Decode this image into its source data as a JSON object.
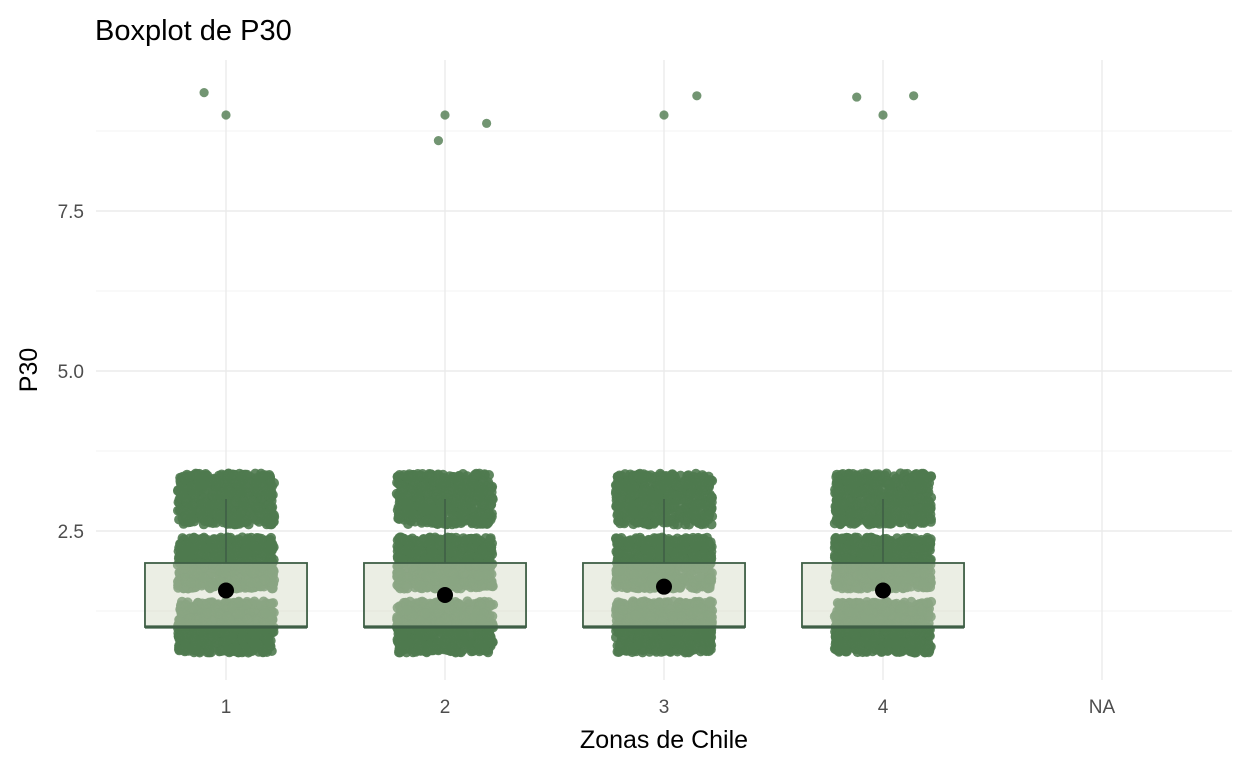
{
  "chart_data": {
    "type": "boxplot",
    "title": "Boxplot de P30",
    "xlabel": "Zonas de Chile",
    "ylabel": "P30",
    "categories": [
      "1",
      "2",
      "3",
      "4",
      "NA"
    ],
    "y_ticks": [
      2.5,
      5.0,
      7.5
    ],
    "y_tick_labels": [
      "2.5",
      "5.0",
      "7.5"
    ],
    "ylim": [
      0.48,
      9.6
    ],
    "grid": true,
    "legend": "none",
    "colors": {
      "points": "#4f7a4f",
      "box_fill": "#d2dac4",
      "box_stroke": "#3f5f46",
      "mean_marker": "#000000",
      "grid": "#ebebeb"
    },
    "boxes": [
      {
        "category": "1",
        "q1": 1.0,
        "median": 1.0,
        "q3": 2.0,
        "whisker_low": 1.0,
        "whisker_high": 3.0,
        "mean": 1.57
      },
      {
        "category": "2",
        "q1": 1.0,
        "median": 1.0,
        "q3": 2.0,
        "whisker_low": 1.0,
        "whisker_high": 3.0,
        "mean": 1.5
      },
      {
        "category": "3",
        "q1": 1.0,
        "median": 1.0,
        "q3": 2.0,
        "whisker_low": 1.0,
        "whisker_high": 3.0,
        "mean": 1.63
      },
      {
        "category": "4",
        "q1": 1.0,
        "median": 1.0,
        "q3": 2.0,
        "whisker_low": 1.0,
        "whisker_high": 3.0,
        "mean": 1.57
      }
    ],
    "outliers": [
      {
        "category": "1",
        "x": 0.9,
        "y": 9.35
      },
      {
        "category": "1",
        "x": 1.0,
        "y": 9.0
      },
      {
        "category": "2",
        "x": 1.97,
        "y": 8.6
      },
      {
        "category": "2",
        "x": 2.0,
        "y": 9.0
      },
      {
        "category": "2",
        "x": 2.19,
        "y": 8.87
      },
      {
        "category": "3",
        "x": 3.0,
        "y": 9.0
      },
      {
        "category": "3",
        "x": 3.15,
        "y": 9.3
      },
      {
        "category": "4",
        "x": 3.88,
        "y": 9.28
      },
      {
        "category": "4",
        "x": 4.0,
        "y": 9.0
      },
      {
        "category": "4",
        "x": 4.14,
        "y": 9.3
      }
    ],
    "jitter_levels": [
      1,
      2,
      3
    ],
    "jitter_half_height": 0.4,
    "jitter_half_width": 0.22
  }
}
